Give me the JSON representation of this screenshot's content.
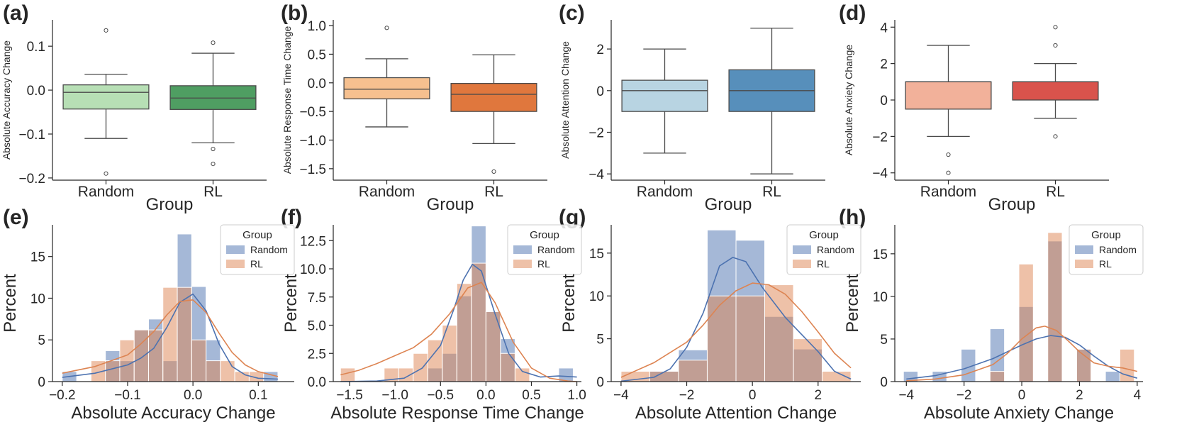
{
  "figure": {
    "group_label": "Group"
  },
  "chart_data": [
    {
      "panel": "(a)",
      "type": "box",
      "categories": [
        "Random",
        "RL"
      ],
      "xlabel": "Group",
      "ylabel": "Absolute Accuracy Change",
      "ylim": [
        -0.205,
        0.16
      ],
      "yticks": [
        -0.2,
        -0.1,
        0.0,
        0.1
      ],
      "ytick_labels": [
        "−0.2",
        "−0.1",
        "0.0",
        "0.1"
      ],
      "boxes": [
        {
          "name": "Random",
          "color": "#b7dfb5",
          "min": -0.11,
          "q1": -0.043,
          "median": -0.005,
          "q3": 0.012,
          "max": 0.036,
          "outliers": [
            0.136,
            -0.19
          ]
        },
        {
          "name": "RL",
          "color": "#4f9e62",
          "min": -0.12,
          "q1": -0.044,
          "median": -0.018,
          "q3": 0.01,
          "max": 0.084,
          "outliers": [
            0.108,
            -0.134,
            -0.168
          ]
        }
      ]
    },
    {
      "panel": "(b)",
      "type": "box",
      "categories": [
        "Random",
        "RL"
      ],
      "xlabel": "Group",
      "ylabel": "Absolute Response Time Change",
      "ylim": [
        -1.7,
        1.1
      ],
      "yticks": [
        -1.5,
        -1.0,
        -0.5,
        0.0,
        0.5,
        1.0
      ],
      "ytick_labels": [
        "−1.5",
        "−1.0",
        "−0.5",
        "0.0",
        "0.5",
        "1.0"
      ],
      "boxes": [
        {
          "name": "Random",
          "color": "#f6c08f",
          "min": -0.77,
          "q1": -0.28,
          "median": -0.11,
          "q3": 0.09,
          "max": 0.42,
          "outliers": [
            0.96
          ]
        },
        {
          "name": "RL",
          "color": "#e0773d",
          "min": -1.06,
          "q1": -0.5,
          "median": -0.2,
          "q3": -0.01,
          "max": 0.49,
          "outliers": [
            -1.55
          ]
        }
      ]
    },
    {
      "panel": "(c)",
      "type": "box",
      "categories": [
        "Random",
        "RL"
      ],
      "xlabel": "Group",
      "ylabel": "Absolute Attention Change",
      "ylim": [
        -4.3,
        3.4
      ],
      "yticks": [
        -4,
        -2,
        0,
        2
      ],
      "ytick_labels": [
        "−4",
        "−2",
        "0",
        "2"
      ],
      "boxes": [
        {
          "name": "Random",
          "color": "#b8d4e2",
          "min": -3,
          "q1": -1,
          "median": 0,
          "q3": 0.5,
          "max": 2,
          "outliers": []
        },
        {
          "name": "RL",
          "color": "#578fbb",
          "min": -4,
          "q1": -1,
          "median": 0,
          "q3": 1,
          "max": 3,
          "outliers": []
        }
      ]
    },
    {
      "panel": "(d)",
      "type": "box",
      "categories": [
        "Random",
        "RL"
      ],
      "xlabel": "Group",
      "ylabel": "Absolute Anxiety Change",
      "ylim": [
        -4.4,
        4.4
      ],
      "yticks": [
        -4,
        -2,
        0,
        2,
        4
      ],
      "ytick_labels": [
        "−4",
        "−2",
        "0",
        "2",
        "4"
      ],
      "boxes": [
        {
          "name": "Random",
          "color": "#f2b19a",
          "min": -2,
          "q1": -0.5,
          "median": 1,
          "q3": 1,
          "max": 3,
          "outliers": [
            -3,
            -4
          ]
        },
        {
          "name": "RL",
          "color": "#d9534c",
          "min": -1,
          "q1": 0,
          "median": 1,
          "q3": 1,
          "max": 2,
          "outliers": [
            4,
            3,
            -2
          ]
        }
      ]
    },
    {
      "panel": "(e)",
      "type": "histogram",
      "xlabel": "Absolute Accuracy Change",
      "ylabel": "Percent",
      "xlim": [
        -0.215,
        0.155
      ],
      "ylim": [
        0,
        18.8
      ],
      "xticks": [
        -0.2,
        -0.1,
        0.0,
        0.1
      ],
      "xtick_labels": [
        "−0.2",
        "−0.1",
        "0.0",
        "0.1"
      ],
      "yticks": [
        0,
        5,
        10,
        15
      ],
      "ytick_labels": [
        "0",
        "5",
        "10",
        "15"
      ],
      "bin_edges": [
        -0.2,
        -0.178,
        -0.156,
        -0.134,
        -0.112,
        -0.09,
        -0.068,
        -0.046,
        -0.024,
        -0.002,
        0.02,
        0.042,
        0.064,
        0.086,
        0.108,
        0.13
      ],
      "legend": {
        "title": "Group",
        "position": "top-right"
      },
      "series": [
        {
          "name": "Random",
          "color": "#4c72b0",
          "values": [
            1.2,
            0,
            0,
            3.7,
            2.5,
            6.2,
            7.5,
            2.5,
            17.7,
            11.4,
            5.0,
            0,
            0,
            0,
            1.2
          ],
          "kde_x": [
            -0.2,
            -0.15,
            -0.1,
            -0.08,
            -0.06,
            -0.04,
            -0.02,
            0,
            0.02,
            0.04,
            0.06,
            0.08,
            0.1,
            0.13
          ],
          "kde_y": [
            0.5,
            1.0,
            2.0,
            2.8,
            4.0,
            6.5,
            9.5,
            10.5,
            8.5,
            4.5,
            1.8,
            0.8,
            0.4,
            0.3
          ]
        },
        {
          "name": "RL",
          "color": "#dd8452",
          "values": [
            0,
            0,
            2.5,
            2.5,
            5.0,
            6.2,
            6.2,
            11.3,
            11.3,
            5.0,
            2.5,
            2.5,
            1.2,
            1.2,
            0
          ],
          "kde_x": [
            -0.2,
            -0.15,
            -0.1,
            -0.08,
            -0.06,
            -0.04,
            -0.02,
            0,
            0.02,
            0.04,
            0.06,
            0.08,
            0.1,
            0.13
          ],
          "kde_y": [
            1.0,
            1.8,
            3.2,
            4.5,
            6.0,
            8.0,
            9.6,
            9.8,
            8.3,
            5.8,
            3.5,
            2.0,
            1.2,
            0.6
          ]
        }
      ]
    },
    {
      "panel": "(f)",
      "type": "histogram",
      "xlabel": "Absolute Response Time Change",
      "ylabel": "Percent",
      "xlim": [
        -1.68,
        1.05
      ],
      "ylim": [
        0,
        13.9
      ],
      "xticks": [
        -1.5,
        -1.0,
        -0.5,
        0.0,
        0.5,
        1.0
      ],
      "xtick_labels": [
        "−1.5",
        "−1.0",
        "−0.5",
        "0.0",
        "0.5",
        "1.0"
      ],
      "yticks": [
        0,
        2.5,
        5,
        7.5,
        10,
        12.5
      ],
      "ytick_labels": [
        "0.0",
        "2.5",
        "5.0",
        "7.5",
        "10.0",
        "12.5"
      ],
      "bin_edges": [
        -1.6,
        -1.44,
        -1.28,
        -1.12,
        -0.96,
        -0.8,
        -0.64,
        -0.48,
        -0.32,
        -0.16,
        0.0,
        0.16,
        0.32,
        0.48,
        0.64,
        0.8,
        0.96
      ],
      "legend": {
        "title": "Group",
        "position": "top-right"
      },
      "series": [
        {
          "name": "Random",
          "color": "#4c72b0",
          "values": [
            0,
            0,
            0,
            0,
            0,
            0,
            1.2,
            2.5,
            7.6,
            13.8,
            6.2,
            3.8,
            0,
            0,
            0,
            1.2
          ],
          "kde_x": [
            -1.6,
            -1.2,
            -0.9,
            -0.7,
            -0.5,
            -0.35,
            -0.25,
            -0.15,
            -0.05,
            0.1,
            0.25,
            0.4,
            0.6,
            0.8,
            1.0
          ],
          "kde_y": [
            0,
            0.05,
            0.3,
            1.2,
            3.2,
            6.5,
            9.0,
            10.4,
            9.8,
            6.0,
            2.5,
            0.9,
            0.4,
            0.5,
            0.4
          ]
        },
        {
          "name": "RL",
          "color": "#dd8452",
          "values": [
            1.2,
            0,
            0,
            1.2,
            1.2,
            2.5,
            3.7,
            5.0,
            8.7,
            10.5,
            6.2,
            2.5,
            1.2,
            0,
            0,
            0
          ],
          "kde_x": [
            -1.6,
            -1.4,
            -1.2,
            -1.0,
            -0.8,
            -0.6,
            -0.4,
            -0.2,
            -0.05,
            0.1,
            0.3,
            0.5,
            0.7,
            0.9,
            1.0
          ],
          "kde_y": [
            0.6,
            1.0,
            1.6,
            2.3,
            3.0,
            4.2,
            6.0,
            8.3,
            8.8,
            7.0,
            3.5,
            1.2,
            0.3,
            0.05,
            0
          ]
        }
      ]
    },
    {
      "panel": "(g)",
      "type": "histogram",
      "xlabel": "Absolute Attention Change",
      "ylabel": "Percent",
      "xlim": [
        -4.3,
        3.3
      ],
      "ylim": [
        0,
        18.3
      ],
      "xticks": [
        -4,
        -2,
        0,
        2
      ],
      "xtick_labels": [
        "−4",
        "−2",
        "0",
        "2"
      ],
      "yticks": [
        0,
        5,
        10,
        15
      ],
      "ytick_labels": [
        "0",
        "5",
        "10",
        "15"
      ],
      "bin_edges": [
        -4,
        -3.125,
        -2.25,
        -1.375,
        -0.5,
        0.375,
        1.25,
        2.125,
        3.0
      ],
      "legend": {
        "title": "Group",
        "position": "top-right"
      },
      "series": [
        {
          "name": "Random",
          "color": "#4c72b0",
          "values": [
            0,
            1.2,
            3.7,
            17.7,
            16.5,
            7.6,
            3.8,
            0
          ],
          "kde_x": [
            -4,
            -3,
            -2.5,
            -2,
            -1.5,
            -1,
            -0.6,
            -0.2,
            0.3,
            1,
            1.5,
            2,
            2.5,
            3
          ],
          "kde_y": [
            0.05,
            0.5,
            1.5,
            4.0,
            8.0,
            13.5,
            14.5,
            14.0,
            11.0,
            7.5,
            5.5,
            3.5,
            1.2,
            0.3
          ]
        },
        {
          "name": "RL",
          "color": "#dd8452",
          "values": [
            1.2,
            1.2,
            2.5,
            10.0,
            10.0,
            11.3,
            5.0,
            1.2
          ],
          "kde_x": [
            -4,
            -3,
            -2,
            -1.5,
            -1,
            -0.5,
            0,
            0.5,
            1,
            1.5,
            2,
            2.5,
            3
          ],
          "kde_y": [
            0.5,
            2.2,
            4.6,
            6.6,
            8.9,
            10.6,
            11.5,
            11.3,
            10.2,
            8.2,
            5.8,
            3.3,
            1.6
          ]
        }
      ]
    },
    {
      "panel": "(h)",
      "type": "histogram",
      "xlabel": "Absolute Anxiety Change",
      "ylabel": "Percent",
      "xlim": [
        -4.4,
        4.2
      ],
      "ylim": [
        0,
        18.4
      ],
      "xticks": [
        -4,
        -2,
        0,
        2,
        4
      ],
      "xtick_labels": [
        "−4",
        "−2",
        "0",
        "2",
        "4"
      ],
      "yticks": [
        0,
        5,
        10,
        15
      ],
      "ytick_labels": [
        "0",
        "5",
        "10",
        "15"
      ],
      "bin_edges": [
        -4.1,
        -3.6,
        -3.1,
        -2.6,
        -2.1,
        -1.6,
        -1.1,
        -0.6,
        -0.1,
        0.4,
        0.9,
        1.4,
        1.9,
        2.4,
        2.9,
        3.4,
        3.9
      ],
      "legend": {
        "title": "Group",
        "position": "top-right"
      },
      "series": [
        {
          "name": "Random",
          "color": "#4c72b0",
          "values": [
            1.2,
            0,
            1.2,
            0,
            3.8,
            0,
            6.2,
            0,
            8.8,
            0,
            16.5,
            0,
            3.8,
            0,
            1.2,
            0
          ],
          "kde_x": [
            -4,
            -3,
            -2,
            -1,
            0,
            0.5,
            1,
            1.5,
            2,
            2.5,
            3,
            3.5,
            4
          ],
          "kde_y": [
            0.3,
            0.7,
            1.5,
            2.7,
            4.3,
            5.0,
            5.4,
            5.2,
            4.3,
            3.0,
            1.8,
            0.9,
            0.4
          ]
        },
        {
          "name": "RL",
          "color": "#dd8452",
          "values": [
            0,
            0,
            0,
            0,
            0,
            0,
            1.2,
            0,
            13.8,
            0,
            17.5,
            0,
            3.8,
            0,
            0,
            3.8
          ],
          "kde_x": [
            -4,
            -3,
            -2,
            -1,
            -0.5,
            0,
            0.5,
            0.8,
            1.2,
            1.6,
            2,
            2.5,
            3,
            3.5,
            4
          ],
          "kde_y": [
            0.1,
            0.3,
            0.8,
            2.0,
            3.3,
            5.0,
            6.3,
            6.5,
            6.0,
            4.8,
            3.5,
            2.2,
            1.8,
            1.6,
            1.2
          ]
        }
      ]
    }
  ]
}
